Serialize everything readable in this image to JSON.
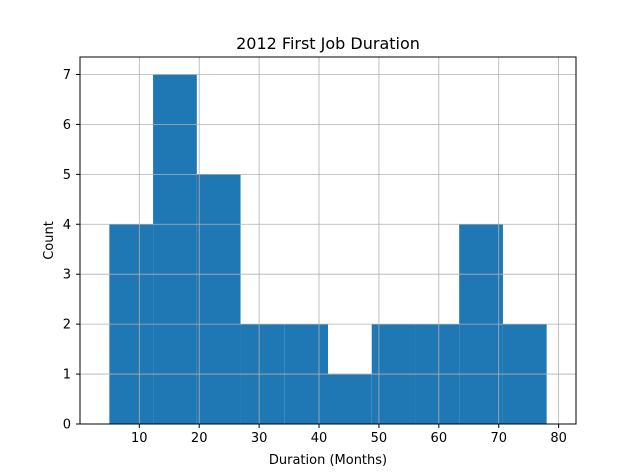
{
  "chart_data": {
    "type": "bar",
    "subtype": "histogram",
    "title": "2012 First Job Duration",
    "xlabel": "Duration (Months)",
    "ylabel": "Count",
    "xlim": [
      0.1,
      82.9
    ],
    "ylim": [
      0,
      7.35
    ],
    "x_ticks": [
      10,
      20,
      30,
      40,
      50,
      60,
      70,
      80
    ],
    "y_ticks": [
      0,
      1,
      2,
      3,
      4,
      5,
      6,
      7
    ],
    "grid": true,
    "bar_color": "#1f77b4",
    "bins": [
      {
        "start": 5.0,
        "end": 12.3,
        "count": 4
      },
      {
        "start": 12.3,
        "end": 19.6,
        "count": 7
      },
      {
        "start": 19.6,
        "end": 26.9,
        "count": 5
      },
      {
        "start": 26.9,
        "end": 34.2,
        "count": 2
      },
      {
        "start": 34.2,
        "end": 41.5,
        "count": 2
      },
      {
        "start": 41.5,
        "end": 48.8,
        "count": 1
      },
      {
        "start": 48.8,
        "end": 56.1,
        "count": 2
      },
      {
        "start": 56.1,
        "end": 63.4,
        "count": 2
      },
      {
        "start": 63.4,
        "end": 70.7,
        "count": 4
      },
      {
        "start": 70.7,
        "end": 78.0,
        "count": 2
      }
    ]
  }
}
